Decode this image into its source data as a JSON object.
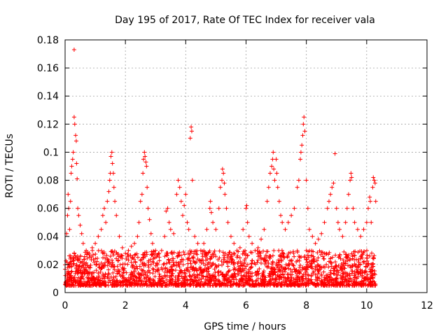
{
  "chart_data": {
    "type": "scatter",
    "title": "Day 195 of 2017, Rate Of TEC Index for receiver vala",
    "xlabel": "GPS time / hours",
    "ylabel": "ROTI / TECUs",
    "xlim": [
      0,
      12
    ],
    "ylim": [
      0,
      0.18
    ],
    "xticks": [
      "0",
      "2",
      "4",
      "6",
      "8",
      "10",
      "12"
    ],
    "xtick_values": [
      0,
      2,
      4,
      6,
      8,
      10,
      12
    ],
    "yticks": [
      "0",
      "0.02",
      "0.04",
      "0.06",
      "0.08",
      "0.1",
      "0.12",
      "0.14",
      "0.16",
      "0.18"
    ],
    "ytick_values": [
      0,
      0.02,
      0.04,
      0.06,
      0.08,
      0.1,
      0.12,
      0.14,
      0.16,
      0.18
    ],
    "grid": true,
    "marker": "+",
    "series": [
      {
        "name": "ROTI",
        "color": "#ff0000",
        "background_band": {
          "x_range": [
            0,
            10.3
          ],
          "y_range": [
            0.005,
            0.03
          ]
        },
        "points": [
          [
            0.05,
            0.042
          ],
          [
            0.08,
            0.055
          ],
          [
            0.1,
            0.07
          ],
          [
            0.12,
            0.06
          ],
          [
            0.15,
            0.045
          ],
          [
            0.18,
            0.065
          ],
          [
            0.2,
            0.085
          ],
          [
            0.22,
            0.09
          ],
          [
            0.25,
            0.095
          ],
          [
            0.27,
            0.1
          ],
          [
            0.3,
            0.173
          ],
          [
            0.3,
            0.125
          ],
          [
            0.32,
            0.12
          ],
          [
            0.35,
            0.112
          ],
          [
            0.37,
            0.108
          ],
          [
            0.38,
            0.092
          ],
          [
            0.4,
            0.081
          ],
          [
            0.42,
            0.06
          ],
          [
            0.45,
            0.055
          ],
          [
            0.5,
            0.048
          ],
          [
            0.55,
            0.042
          ],
          [
            0.6,
            0.035
          ],
          [
            0.7,
            0.03
          ],
          [
            0.8,
            0.028
          ],
          [
            0.9,
            0.032
          ],
          [
            1.0,
            0.035
          ],
          [
            1.1,
            0.04
          ],
          [
            1.2,
            0.045
          ],
          [
            1.25,
            0.055
          ],
          [
            1.3,
            0.06
          ],
          [
            1.35,
            0.05
          ],
          [
            1.4,
            0.065
          ],
          [
            1.45,
            0.072
          ],
          [
            1.48,
            0.08
          ],
          [
            1.5,
            0.085
          ],
          [
            1.52,
            0.097
          ],
          [
            1.55,
            0.1
          ],
          [
            1.57,
            0.092
          ],
          [
            1.6,
            0.085
          ],
          [
            1.62,
            0.075
          ],
          [
            1.65,
            0.065
          ],
          [
            1.7,
            0.055
          ],
          [
            1.8,
            0.04
          ],
          [
            1.9,
            0.032
          ],
          [
            2.0,
            0.028
          ],
          [
            2.1,
            0.03
          ],
          [
            2.2,
            0.033
          ],
          [
            2.3,
            0.035
          ],
          [
            2.4,
            0.04
          ],
          [
            2.45,
            0.05
          ],
          [
            2.5,
            0.065
          ],
          [
            2.55,
            0.07
          ],
          [
            2.58,
            0.085
          ],
          [
            2.6,
            0.095
          ],
          [
            2.63,
            0.1
          ],
          [
            2.65,
            0.097
          ],
          [
            2.68,
            0.093
          ],
          [
            2.7,
            0.09
          ],
          [
            2.72,
            0.075
          ],
          [
            2.75,
            0.06
          ],
          [
            2.8,
            0.052
          ],
          [
            2.85,
            0.042
          ],
          [
            2.9,
            0.035
          ],
          [
            3.0,
            0.03
          ],
          [
            3.1,
            0.028
          ],
          [
            3.2,
            0.03
          ],
          [
            3.3,
            0.04
          ],
          [
            3.35,
            0.058
          ],
          [
            3.4,
            0.06
          ],
          [
            3.45,
            0.05
          ],
          [
            3.5,
            0.045
          ],
          [
            3.6,
            0.042
          ],
          [
            3.7,
            0.07
          ],
          [
            3.75,
            0.08
          ],
          [
            3.8,
            0.075
          ],
          [
            3.85,
            0.065
          ],
          [
            3.9,
            0.055
          ],
          [
            3.95,
            0.062
          ],
          [
            4.0,
            0.07
          ],
          [
            4.05,
            0.05
          ],
          [
            4.1,
            0.045
          ],
          [
            4.15,
            0.11
          ],
          [
            4.18,
            0.118
          ],
          [
            4.2,
            0.115
          ],
          [
            4.22,
            0.08
          ],
          [
            4.3,
            0.04
          ],
          [
            4.4,
            0.035
          ],
          [
            4.5,
            0.03
          ],
          [
            4.6,
            0.035
          ],
          [
            4.7,
            0.045
          ],
          [
            4.8,
            0.06
          ],
          [
            4.82,
            0.065
          ],
          [
            4.85,
            0.057
          ],
          [
            4.9,
            0.05
          ],
          [
            5.0,
            0.045
          ],
          [
            5.1,
            0.06
          ],
          [
            5.15,
            0.075
          ],
          [
            5.2,
            0.08
          ],
          [
            5.22,
            0.088
          ],
          [
            5.25,
            0.085
          ],
          [
            5.28,
            0.078
          ],
          [
            5.3,
            0.07
          ],
          [
            5.35,
            0.06
          ],
          [
            5.4,
            0.05
          ],
          [
            5.5,
            0.04
          ],
          [
            5.6,
            0.035
          ],
          [
            5.7,
            0.03
          ],
          [
            5.8,
            0.032
          ],
          [
            5.9,
            0.045
          ],
          [
            6.0,
            0.06
          ],
          [
            6.02,
            0.062
          ],
          [
            6.05,
            0.05
          ],
          [
            6.1,
            0.04
          ],
          [
            6.2,
            0.035
          ],
          [
            6.3,
            0.03
          ],
          [
            6.4,
            0.032
          ],
          [
            6.5,
            0.038
          ],
          [
            6.6,
            0.045
          ],
          [
            6.7,
            0.065
          ],
          [
            6.75,
            0.075
          ],
          [
            6.8,
            0.085
          ],
          [
            6.85,
            0.09
          ],
          [
            6.88,
            0.095
          ],
          [
            6.9,
            0.1
          ],
          [
            6.92,
            0.088
          ],
          [
            6.95,
            0.08
          ],
          [
            7.0,
            0.095
          ],
          [
            7.02,
            0.085
          ],
          [
            7.05,
            0.075
          ],
          [
            7.1,
            0.065
          ],
          [
            7.15,
            0.055
          ],
          [
            7.2,
            0.05
          ],
          [
            7.3,
            0.045
          ],
          [
            7.4,
            0.05
          ],
          [
            7.5,
            0.055
          ],
          [
            7.6,
            0.06
          ],
          [
            7.7,
            0.075
          ],
          [
            7.75,
            0.08
          ],
          [
            7.8,
            0.095
          ],
          [
            7.82,
            0.1
          ],
          [
            7.85,
            0.105
          ],
          [
            7.88,
            0.112
          ],
          [
            7.9,
            0.12
          ],
          [
            7.92,
            0.125
          ],
          [
            7.95,
            0.115
          ],
          [
            8.0,
            0.08
          ],
          [
            8.05,
            0.06
          ],
          [
            8.1,
            0.045
          ],
          [
            8.2,
            0.04
          ],
          [
            8.3,
            0.035
          ],
          [
            8.4,
            0.038
          ],
          [
            8.5,
            0.042
          ],
          [
            8.6,
            0.05
          ],
          [
            8.7,
            0.06
          ],
          [
            8.75,
            0.065
          ],
          [
            8.8,
            0.07
          ],
          [
            8.85,
            0.075
          ],
          [
            8.9,
            0.078
          ],
          [
            8.95,
            0.099
          ],
          [
            9.0,
            0.06
          ],
          [
            9.05,
            0.05
          ],
          [
            9.1,
            0.045
          ],
          [
            9.2,
            0.04
          ],
          [
            9.3,
            0.05
          ],
          [
            9.35,
            0.06
          ],
          [
            9.4,
            0.07
          ],
          [
            9.45,
            0.08
          ],
          [
            9.48,
            0.085
          ],
          [
            9.5,
            0.082
          ],
          [
            9.55,
            0.06
          ],
          [
            9.6,
            0.05
          ],
          [
            9.7,
            0.045
          ],
          [
            9.8,
            0.04
          ],
          [
            9.9,
            0.045
          ],
          [
            10.0,
            0.05
          ],
          [
            10.05,
            0.06
          ],
          [
            10.1,
            0.068
          ],
          [
            10.12,
            0.065
          ],
          [
            10.15,
            0.05
          ],
          [
            10.2,
            0.075
          ],
          [
            10.22,
            0.082
          ],
          [
            10.25,
            0.08
          ],
          [
            10.28,
            0.078
          ],
          [
            10.3,
            0.065
          ]
        ]
      }
    ]
  }
}
